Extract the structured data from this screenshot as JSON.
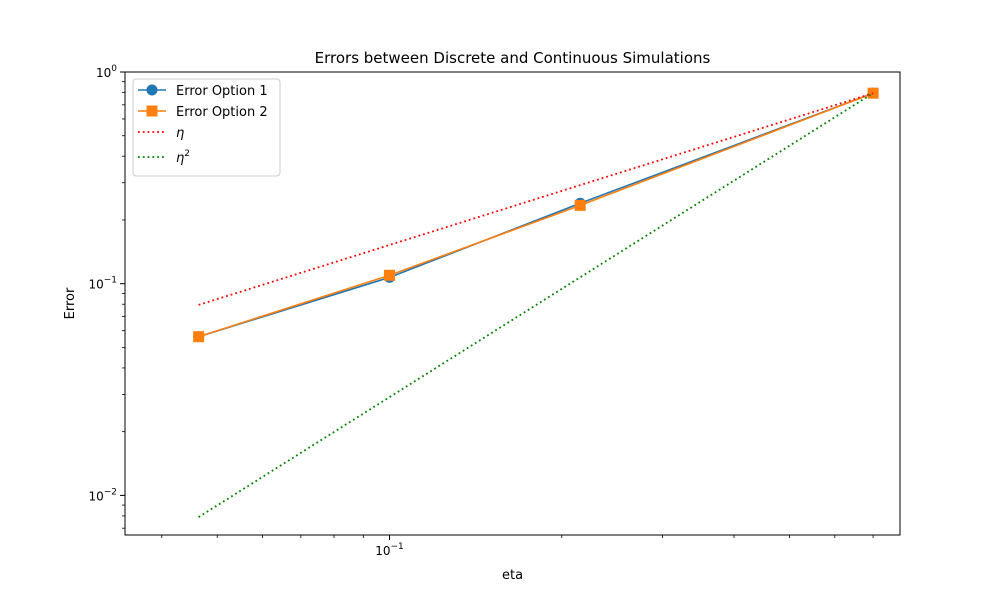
{
  "chart_data": {
    "type": "line",
    "title": "Errors between Discrete and Continuous Simulations",
    "xlabel": "eta",
    "ylabel": "Error",
    "x_scale": "log",
    "y_scale": "log",
    "xlim": [
      0.0345,
      0.78
    ],
    "ylim": [
      0.0065,
      1.0
    ],
    "x_ticks": [
      {
        "value": 0.1,
        "base": "10",
        "exp": "−1"
      }
    ],
    "y_ticks": [
      {
        "value": 0.01,
        "base": "10",
        "exp": "−2"
      },
      {
        "value": 0.1,
        "base": "10",
        "exp": "−1"
      },
      {
        "value": 1,
        "base": "10",
        "exp": "0"
      }
    ],
    "grid": false,
    "legend_position": "upper left",
    "series": [
      {
        "name": "Error Option 1",
        "color": "#1f77b4",
        "marker": "circle",
        "linestyle": "solid",
        "x": [
          0.0464,
          0.1,
          0.2154,
          0.7
        ],
        "y": [
          0.0562,
          0.1071,
          0.2398,
          0.7943
        ]
      },
      {
        "name": "Error Option 2",
        "color": "#ff7f0e",
        "marker": "square",
        "linestyle": "solid",
        "x": [
          0.0464,
          0.1,
          0.2154,
          0.7
        ],
        "y": [
          0.0562,
          0.1096,
          0.2344,
          0.7943
        ]
      },
      {
        "name": "η",
        "name_sup": "",
        "color": "#ff0000",
        "marker": "none",
        "linestyle": "dotted",
        "x": [
          0.0464,
          0.7
        ],
        "y": [
          0.0794,
          0.7943
        ]
      },
      {
        "name": "η",
        "name_sup": "2",
        "color": "#008000",
        "marker": "none",
        "linestyle": "dotted",
        "x": [
          0.0464,
          0.7
        ],
        "y": [
          0.0079,
          0.7943
        ]
      }
    ]
  }
}
